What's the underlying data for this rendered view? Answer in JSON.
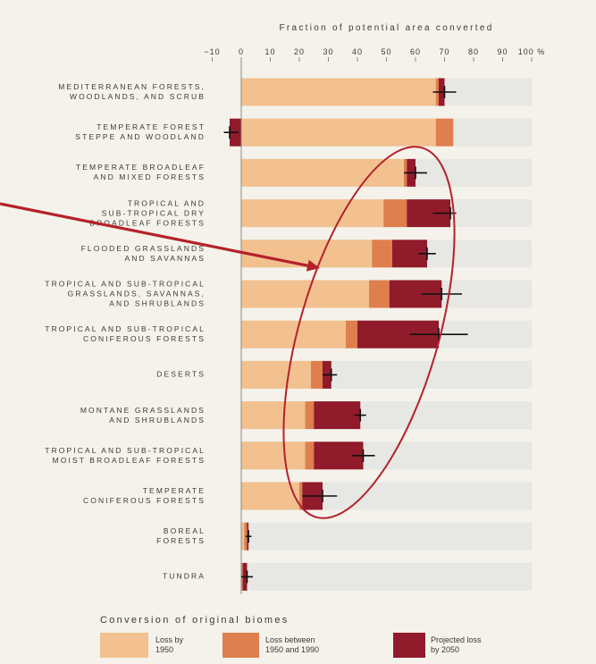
{
  "colors": {
    "background": "#f4f2ea",
    "row_background": "#e7e7e3",
    "text": "#3a3a3a",
    "axis": "#8a8a8a",
    "error_bar": "#111111",
    "annotation": "#b3222b"
  },
  "chart_data": {
    "type": "bar",
    "orientation": "horizontal",
    "stacked": true,
    "xlabel": "Fraction of potential area converted",
    "xlim": [
      -10,
      100
    ],
    "x_ticks": [
      -10,
      0,
      10,
      20,
      30,
      40,
      50,
      60,
      70,
      80,
      90,
      100
    ],
    "x_tick_labels": [
      "−10",
      "0",
      "10",
      "20",
      "30",
      "40",
      "50",
      "60",
      "70",
      "80",
      "90",
      "100 %"
    ],
    "categories": [
      "MEDITERRANEAN FORESTS,\nWOODLANDS, AND SCRUB",
      "TEMPERATE FOREST\nSTEPPE AND WOODLAND",
      "TEMPERATE BROADLEAF\nAND MIXED FORESTS",
      "TROPICAL AND\nSUB-TROPICAL DRY\nBROADLEAF FORESTS",
      "FLOODED GRASSLANDS\nAND SAVANNAS",
      "TROPICAL AND SUB-TROPICAL\nGRASSLANDS, SAVANNAS,\nAND SHRUBLANDS",
      "TROPICAL AND SUB-TROPICAL\nCONIFEROUS FORESTS",
      "DESERTS",
      "MONTANE GRASSLANDS\nAND SHRUBLANDS",
      "TROPICAL AND SUB-TROPICAL\nMOIST BROADLEAF FORESTS",
      "TEMPERATE\nCONIFEROUS FORESTS",
      "BOREAL\nFORESTS",
      "TUNDRA"
    ],
    "series": [
      {
        "name": "Loss by 1950",
        "color": "#f2c18f",
        "values": [
          67,
          67,
          56,
          49,
          45,
          44,
          36,
          24,
          22,
          22,
          20,
          1,
          0
        ]
      },
      {
        "name": "Loss between 1950 and 1990",
        "color": "#de7f4d",
        "values": [
          1,
          6,
          1,
          8,
          7,
          7,
          4,
          4,
          3,
          3,
          1,
          1,
          0.5
        ]
      },
      {
        "name": "Projected loss by 2050",
        "color": "#911b2b",
        "values": [
          2,
          -4,
          3,
          15,
          12,
          18,
          28,
          3,
          16,
          17,
          7,
          0.5,
          1.5
        ]
      }
    ],
    "error_ranges": [
      [
        66,
        74
      ],
      [
        -6,
        -1
      ],
      [
        56,
        64
      ],
      [
        66,
        74
      ],
      [
        61,
        67
      ],
      [
        62,
        76
      ],
      [
        58,
        78
      ],
      [
        28,
        33
      ],
      [
        39,
        43
      ],
      [
        38,
        46
      ],
      [
        21,
        33
      ],
      [
        1.5,
        3.5
      ],
      [
        0,
        4
      ]
    ],
    "legend_title": "Conversion of original biomes",
    "legend_position": "bottom",
    "grid": false
  }
}
